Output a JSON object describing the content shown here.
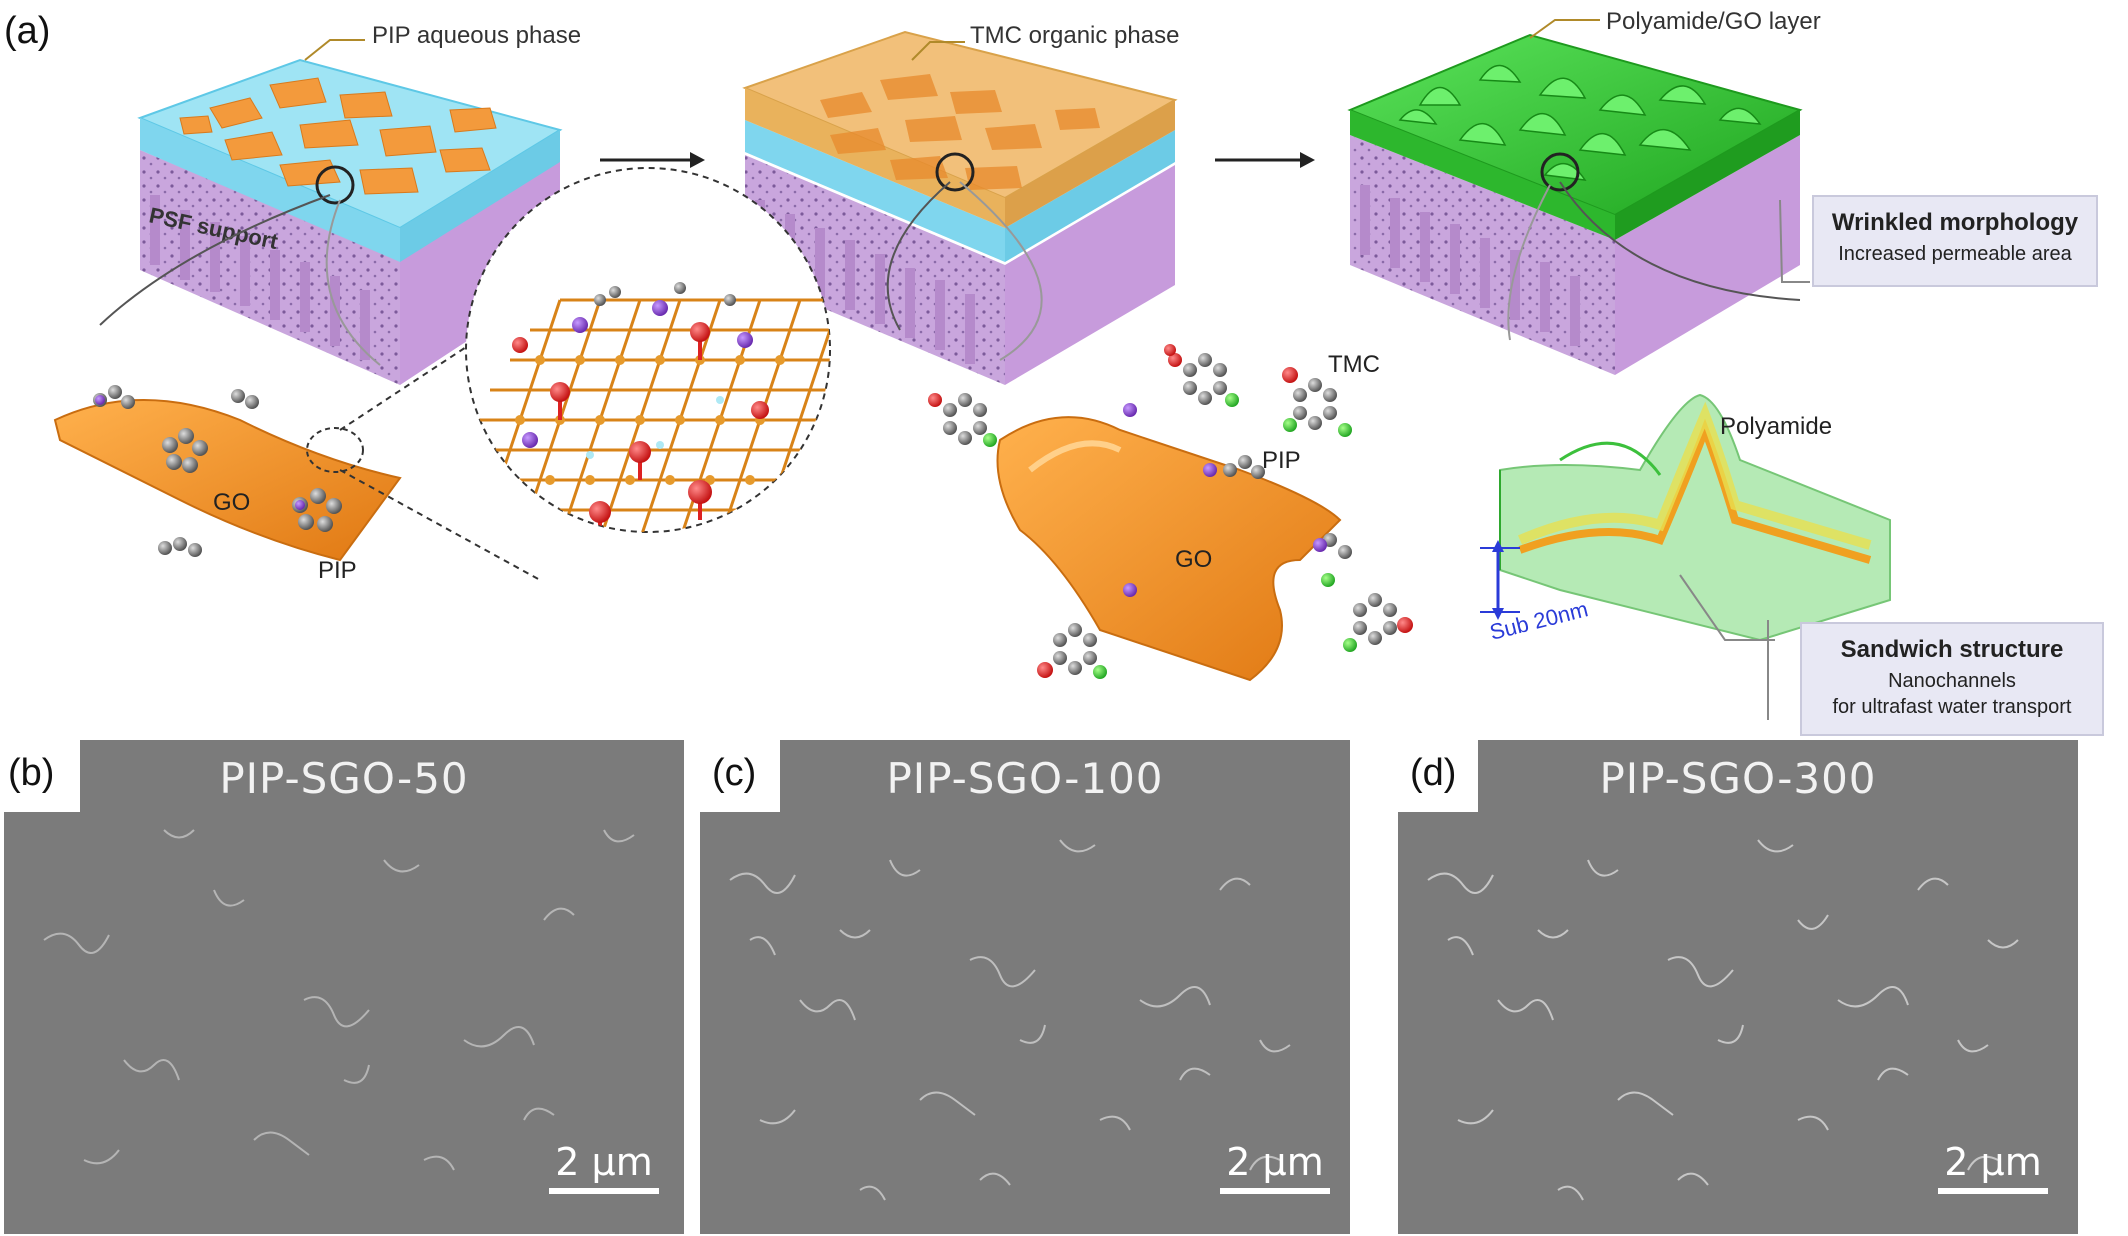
{
  "panel_a": {
    "label": "(a)",
    "callouts": {
      "pip_aqueous": "PIP aqueous phase",
      "tmc_organic": "TMC organic phase",
      "polyamide_go": "Polyamide/GO layer",
      "psf_support": "PSF support"
    },
    "wrinkled_box": {
      "title": "Wrinkled morphology",
      "subtitle": "Increased permeable area"
    },
    "sandwich_box": {
      "title": "Sandwich structure",
      "line1": "Nanochannels",
      "line2": "for ultrafast water transport"
    },
    "molecule_labels": {
      "go_left": "GO",
      "pip_left": "PIP",
      "tmc": "TMC",
      "pip_mid": "PIP",
      "go_mid": "GO",
      "polyamide": "Polyamide",
      "sub20": "Sub 20nm"
    }
  },
  "sem_panels": [
    {
      "letter": "(b)",
      "title": "PIP-SGO-50",
      "scale": "2 μm"
    },
    {
      "letter": "(c)",
      "title": "PIP-SGO-100",
      "scale": "2 μm"
    },
    {
      "letter": "(d)",
      "title": "PIP-SGO-300",
      "scale": "2 μm"
    }
  ],
  "colors": {
    "aqueous": "#8fdcf0",
    "go_orange": "#f39a3c",
    "psf_purple": "#c9a6dd",
    "tmc_layer": "#e9b25c",
    "polyamide_green": "#3ec93e",
    "sem_gray": "#7a7a7a"
  }
}
